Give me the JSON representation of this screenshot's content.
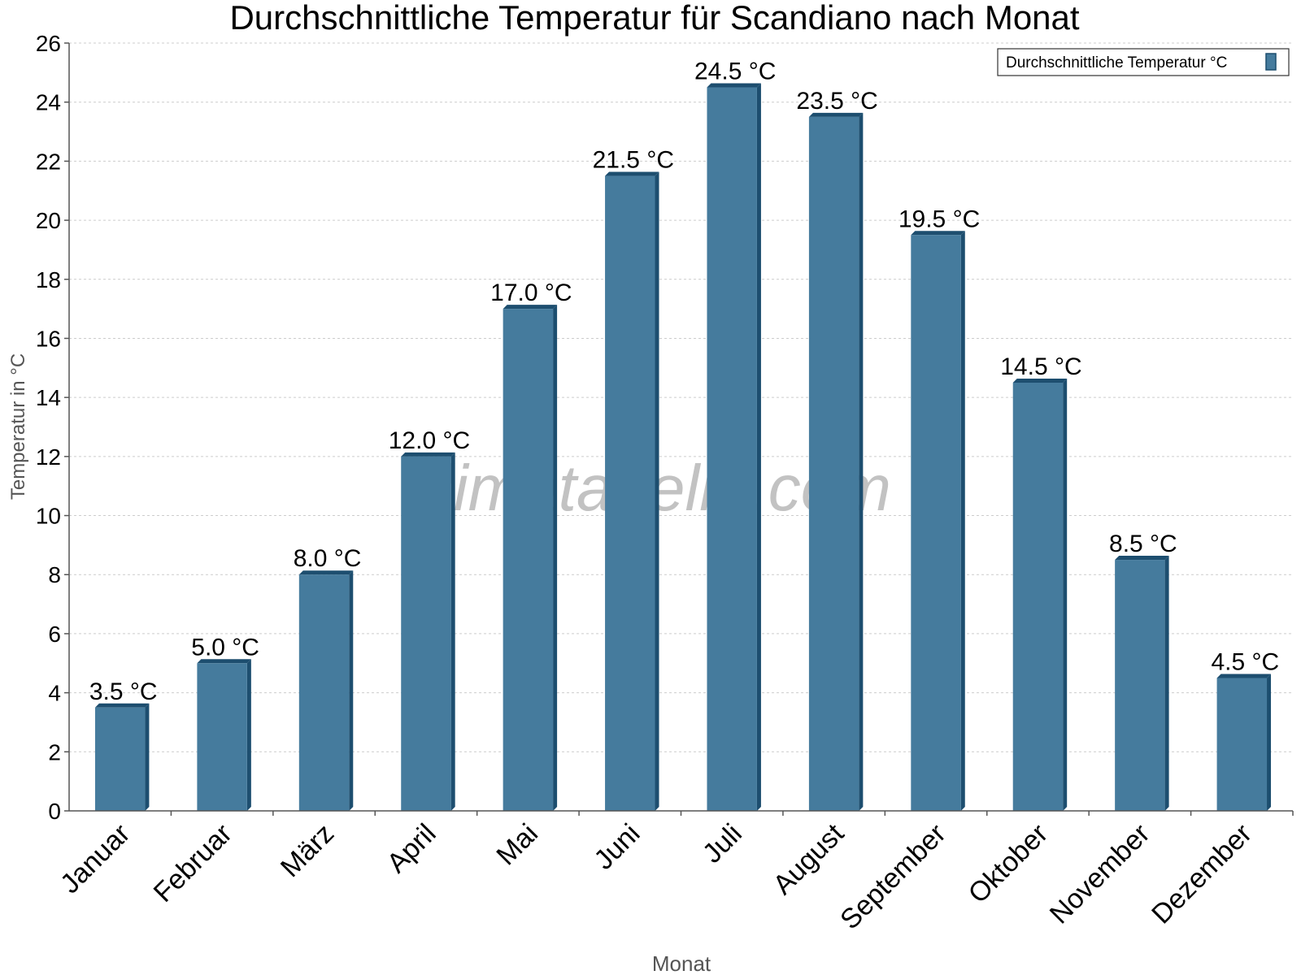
{
  "chart_data": {
    "type": "bar",
    "title": "Durchschnittliche Temperatur für Scandiano nach Monat",
    "xlabel": "Monat",
    "ylabel": "Temperatur in °C",
    "categories": [
      "Januar",
      "Februar",
      "März",
      "April",
      "Mai",
      "Juni",
      "Juli",
      "August",
      "September",
      "Oktober",
      "November",
      "Dezember"
    ],
    "series": [
      {
        "name": "Durchschnittliche Temperatur °C",
        "values": [
          3.5,
          5.0,
          8.0,
          12.0,
          17.0,
          21.5,
          24.5,
          23.5,
          19.5,
          14.5,
          8.5,
          4.5
        ],
        "labels": [
          "3.5 °C",
          "5.0 °C",
          "8.0 °C",
          "12.0 °C",
          "17.0 °C",
          "21.5 °C",
          "24.5 °C",
          "23.5 °C",
          "19.5 °C",
          "14.5 °C",
          "8.5 °C",
          "4.5 °C"
        ]
      }
    ],
    "ylim": [
      0,
      26
    ],
    "yticks": [
      "0",
      "2",
      "4",
      "6",
      "8",
      "10",
      "12",
      "14",
      "16",
      "18",
      "20",
      "22",
      "24",
      "26"
    ],
    "grid": true,
    "legend_position": "top-right",
    "watermark": "klimatabelle.com",
    "colors": {
      "bar_face": "#457b9d",
      "bar_side": "#1d4e6f",
      "grid": "#cccccc",
      "axis": "#555555",
      "axis_label": "#555555"
    }
  }
}
